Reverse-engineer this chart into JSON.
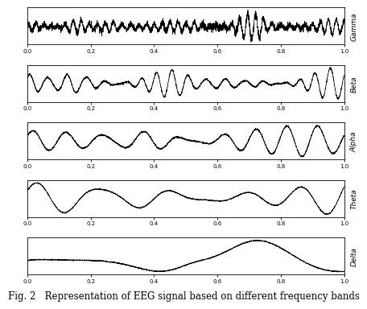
{
  "bands": [
    "Gamma",
    "Beta",
    "Alpha",
    "Theta",
    "Delta"
  ],
  "x_ticks": [
    0.0,
    0.2,
    0.4,
    0.6,
    0.8,
    1.0
  ],
  "x_tick_labels": [
    "0.0",
    "0.2",
    "0.4",
    "0.6",
    "0.8",
    "1.0"
  ],
  "line_color": "#000000",
  "bg_color": "#ffffff",
  "figure_bg": "#ffffff",
  "caption": "Fig. 2   Representation of EEG signal based on different frequency bands",
  "caption_fontsize": 8.5
}
